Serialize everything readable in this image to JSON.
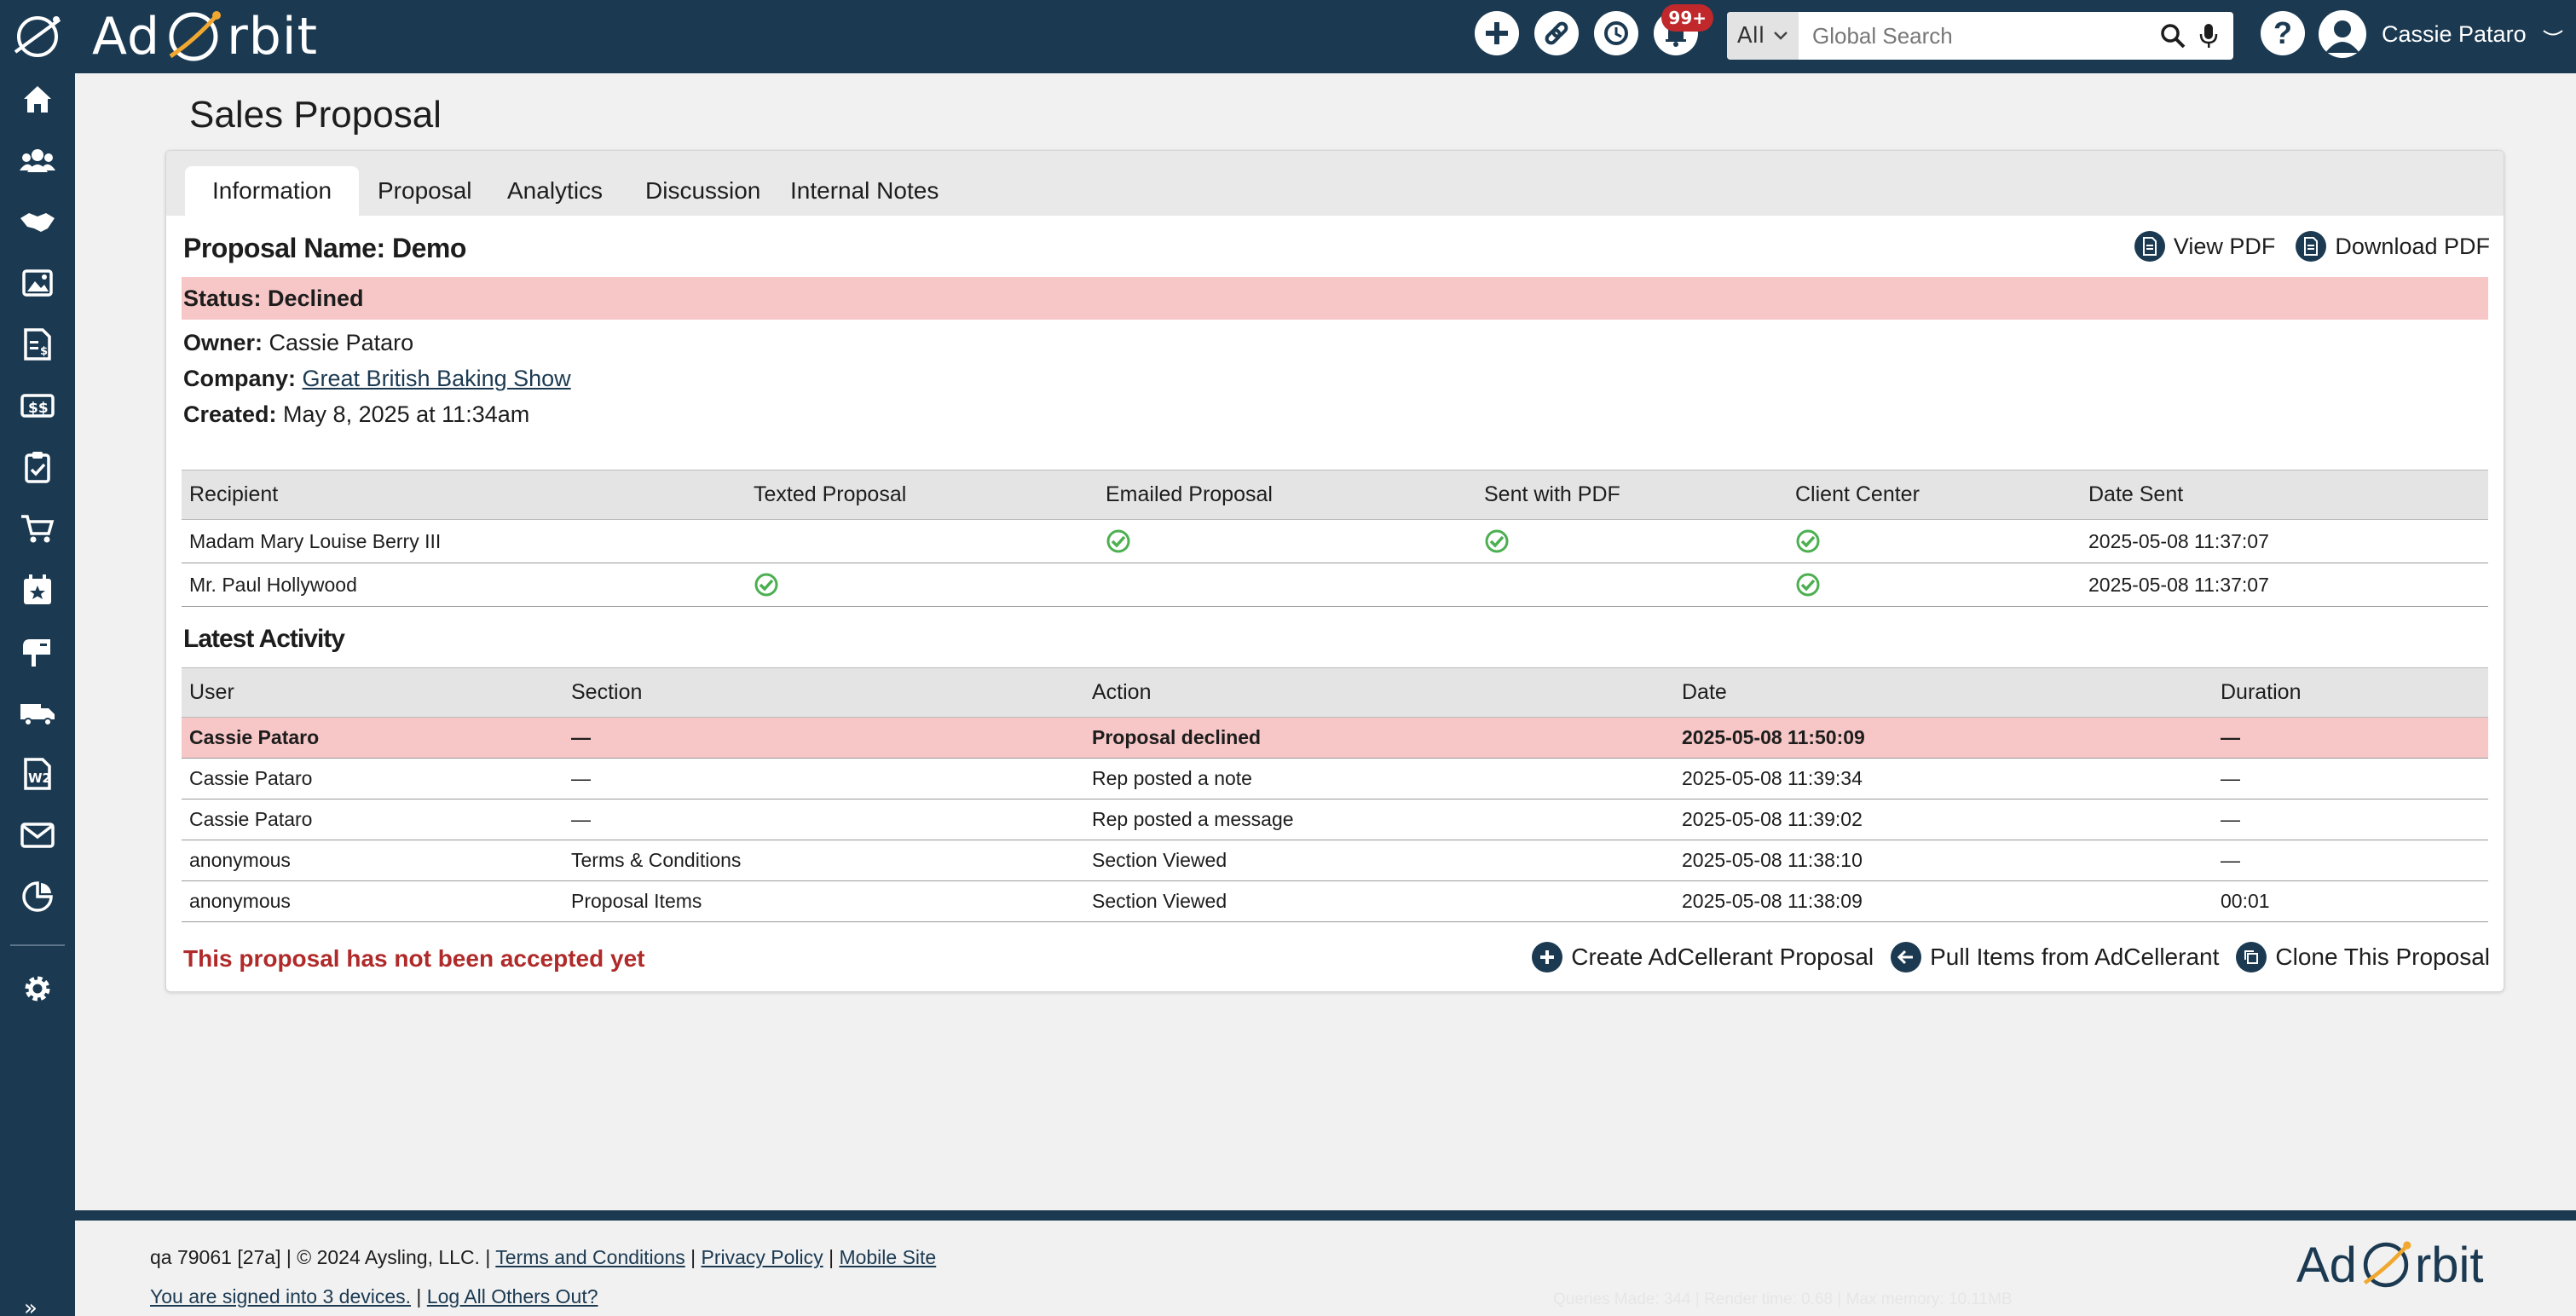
{
  "app": {
    "name": "Ad Orbit"
  },
  "header": {
    "search_scope": "All",
    "search_placeholder": "Global Search",
    "notifications_badge": "99+",
    "user_name": "Cassie Pataro"
  },
  "sidebar": {
    "items": [
      "home-icon",
      "contacts-icon",
      "handshake-icon",
      "media-icon",
      "invoice-icon",
      "billing-icon",
      "tasks-icon",
      "cart-icon",
      "calendar-icon",
      "mailbox-icon",
      "delivery-icon",
      "tax-form-icon",
      "mail-icon",
      "reports-icon",
      "settings-icon"
    ]
  },
  "page": {
    "title": "Sales Proposal"
  },
  "tabs": [
    "Information",
    "Proposal",
    "Analytics",
    "Discussion",
    "Internal Notes"
  ],
  "proposal": {
    "name": "Proposal Name: Demo",
    "view_pdf": "View PDF",
    "download_pdf": "Download PDF",
    "status": "Status: Declined",
    "owner_label": "Owner:",
    "owner_value": "Cassie Pataro",
    "company_label": "Company:",
    "company_value": "Great British Baking Show",
    "created_label": "Created:",
    "created_value": "May 8, 2025 at 11:34am"
  },
  "recipients": {
    "headers": [
      "Recipient",
      "Texted Proposal",
      "Emailed Proposal",
      "Sent with PDF",
      "Client Center",
      "Date Sent"
    ],
    "rows": [
      {
        "recipient": "Madam Mary Louise Berry III",
        "texted": false,
        "emailed": true,
        "pdf": true,
        "client_center": true,
        "date_sent": "2025-05-08 11:37:07"
      },
      {
        "recipient": "Mr. Paul Hollywood",
        "texted": true,
        "emailed": false,
        "pdf": false,
        "client_center": true,
        "date_sent": "2025-05-08 11:37:07"
      }
    ]
  },
  "activity": {
    "title": "Latest Activity",
    "headers": [
      "User",
      "Section",
      "Action",
      "Date",
      "Duration"
    ],
    "rows": [
      {
        "user": "Cassie Pataro",
        "section": "—",
        "action": "Proposal declined",
        "date": "2025-05-08 11:50:09",
        "duration": "—",
        "highlight": true
      },
      {
        "user": "Cassie Pataro",
        "section": "—",
        "action": "Rep posted a note",
        "date": "2025-05-08 11:39:34",
        "duration": "—"
      },
      {
        "user": "Cassie Pataro",
        "section": "—",
        "action": "Rep posted a message",
        "date": "2025-05-08 11:39:02",
        "duration": "—"
      },
      {
        "user": "anonymous",
        "section": "Terms & Conditions",
        "action": "Section Viewed",
        "date": "2025-05-08 11:38:10",
        "duration": "—"
      },
      {
        "user": "anonymous",
        "section": "Proposal Items",
        "action": "Section Viewed",
        "date": "2025-05-08 11:38:09",
        "duration": "00:01"
      }
    ]
  },
  "footer_actions": {
    "not_accepted": "This proposal has not been accepted yet",
    "create": "Create AdCellerant Proposal",
    "pull": "Pull Items from AdCellerant",
    "clone": "Clone This Proposal"
  },
  "footer": {
    "version": "qa 79061 [27a] | © 2024 Aysling, LLC. |",
    "terms": "Terms and Conditions",
    "privacy": "Privacy Policy",
    "mobile": "Mobile Site",
    "signed_in": "You are signed into 3 devices.",
    "log_out": "Log All Others Out?",
    "debug": "Queries Made: 344 | Render time: 0.68 | Max memory: 10.11MB",
    "sep": "|"
  },
  "colors": {
    "navy": "#1b3a52",
    "declined_bg": "#f7c6c6",
    "alert_red": "#b02a2a",
    "check_green": "#4caf50"
  }
}
